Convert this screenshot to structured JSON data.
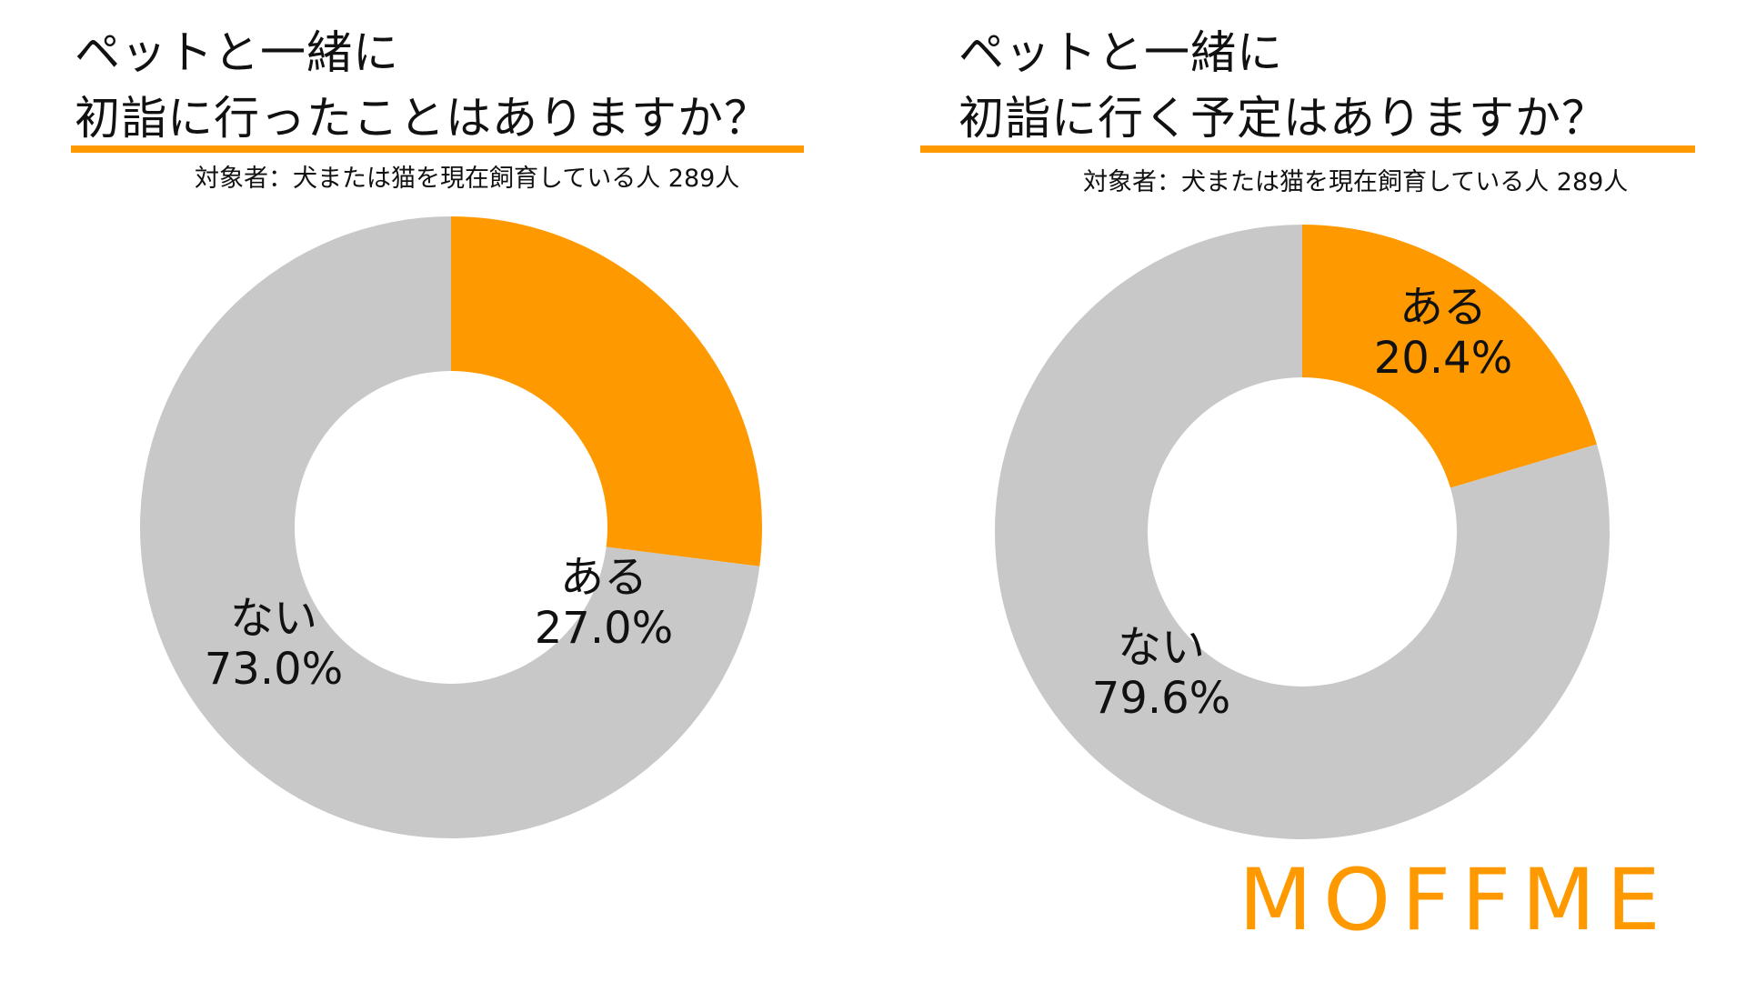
{
  "colors": {
    "accent": "#ff9900",
    "neutral": "#c8c8c8",
    "hole": "#ffffff",
    "text": "#111111"
  },
  "brand": {
    "logo_text": "MOFFME"
  },
  "chart_data": [
    {
      "type": "pie",
      "title_lines": [
        "ペットと一緒に",
        "初詣に行ったことはありますか？"
      ],
      "subtitle": "対象者：犬または猫を現在飼育している人 289人",
      "slices": [
        {
          "label": "ある",
          "value_text": "27.0%",
          "value": 27.0,
          "color": "#ff9900"
        },
        {
          "label": "ない",
          "value_text": "73.0%",
          "value": 73.0,
          "color": "#c8c8c8"
        }
      ]
    },
    {
      "type": "pie",
      "title_lines": [
        "ペットと一緒に",
        "初詣に行く予定はありますか？"
      ],
      "subtitle": "対象者：犬または猫を現在飼育している人 289人",
      "slices": [
        {
          "label": "ある",
          "value_text": "20.4%",
          "value": 20.4,
          "color": "#ff9900"
        },
        {
          "label": "ない",
          "value_text": "79.6%",
          "value": 79.6,
          "color": "#c8c8c8"
        }
      ]
    }
  ]
}
